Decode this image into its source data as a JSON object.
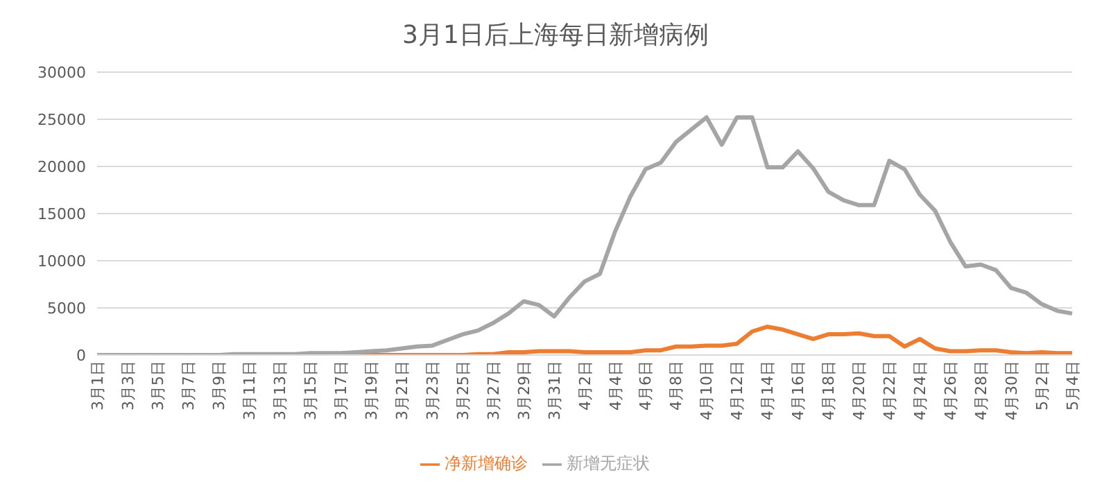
{
  "chart_data": {
    "type": "line",
    "title": "3月1日后上海每日新增病例",
    "categories": [
      "3月1日",
      null,
      "3月3日",
      null,
      "3月5日",
      null,
      "3月7日",
      null,
      "3月9日",
      null,
      "3月11日",
      null,
      "3月13日",
      null,
      "3月15日",
      null,
      "3月17日",
      null,
      "3月19日",
      null,
      "3月21日",
      null,
      "3月23日",
      null,
      "3月25日",
      null,
      "3月27日",
      null,
      "3月29日",
      null,
      "3月31日",
      null,
      "4月2日",
      null,
      "4月4日",
      null,
      "4月6日",
      null,
      "4月8日",
      null,
      "4月10日",
      null,
      "4月12日",
      null,
      "4月14日",
      null,
      "4月16日",
      null,
      "4月18日",
      null,
      "4月20日",
      null,
      "4月22日",
      null,
      "4月24日",
      null,
      "4月26日",
      null,
      "4月28日",
      null,
      "4月30日",
      null,
      "5月2日",
      null,
      "5月4日"
    ],
    "series": [
      {
        "name": "净新增确诊",
        "color": "#ed7d31",
        "values": [
          null,
          null,
          null,
          null,
          null,
          null,
          null,
          null,
          null,
          null,
          null,
          null,
          null,
          null,
          null,
          null,
          0,
          0,
          0,
          0,
          0,
          0,
          0,
          0,
          0,
          100,
          100,
          300,
          300,
          400,
          400,
          400,
          300,
          300,
          300,
          300,
          500,
          500,
          900,
          900,
          1000,
          1000,
          1200,
          2500,
          3000,
          2700,
          2200,
          1700,
          2200,
          2200,
          2300,
          2000,
          2000,
          900,
          1700,
          700,
          400,
          400,
          500,
          500,
          300,
          200,
          300,
          200,
          200
        ]
      },
      {
        "name": "新增无症状",
        "color": "#a5a5a5",
        "values": [
          0,
          0,
          0,
          0,
          0,
          0,
          0,
          0,
          0,
          100,
          100,
          100,
          100,
          100,
          200,
          200,
          200,
          300,
          400,
          500,
          700,
          900,
          1000,
          1600,
          2200,
          2600,
          3400,
          4400,
          5700,
          5300,
          4100,
          6100,
          7800,
          8600,
          13100,
          16800,
          19700,
          20400,
          22600,
          23900,
          25200,
          22300,
          25200,
          25200,
          19900,
          19900,
          21600,
          19800,
          17300,
          16400,
          15900,
          15900,
          20600,
          19700,
          17000,
          15300,
          12000,
          9400,
          9600,
          9000,
          7100,
          6600,
          5400,
          4700,
          4400
        ]
      }
    ],
    "ylim": [
      0,
      30000
    ],
    "yticks": [
      0,
      5000,
      10000,
      15000,
      20000,
      25000,
      30000
    ],
    "grid": "y",
    "legend": "bottom",
    "marker": "none",
    "line_style": "solid"
  }
}
